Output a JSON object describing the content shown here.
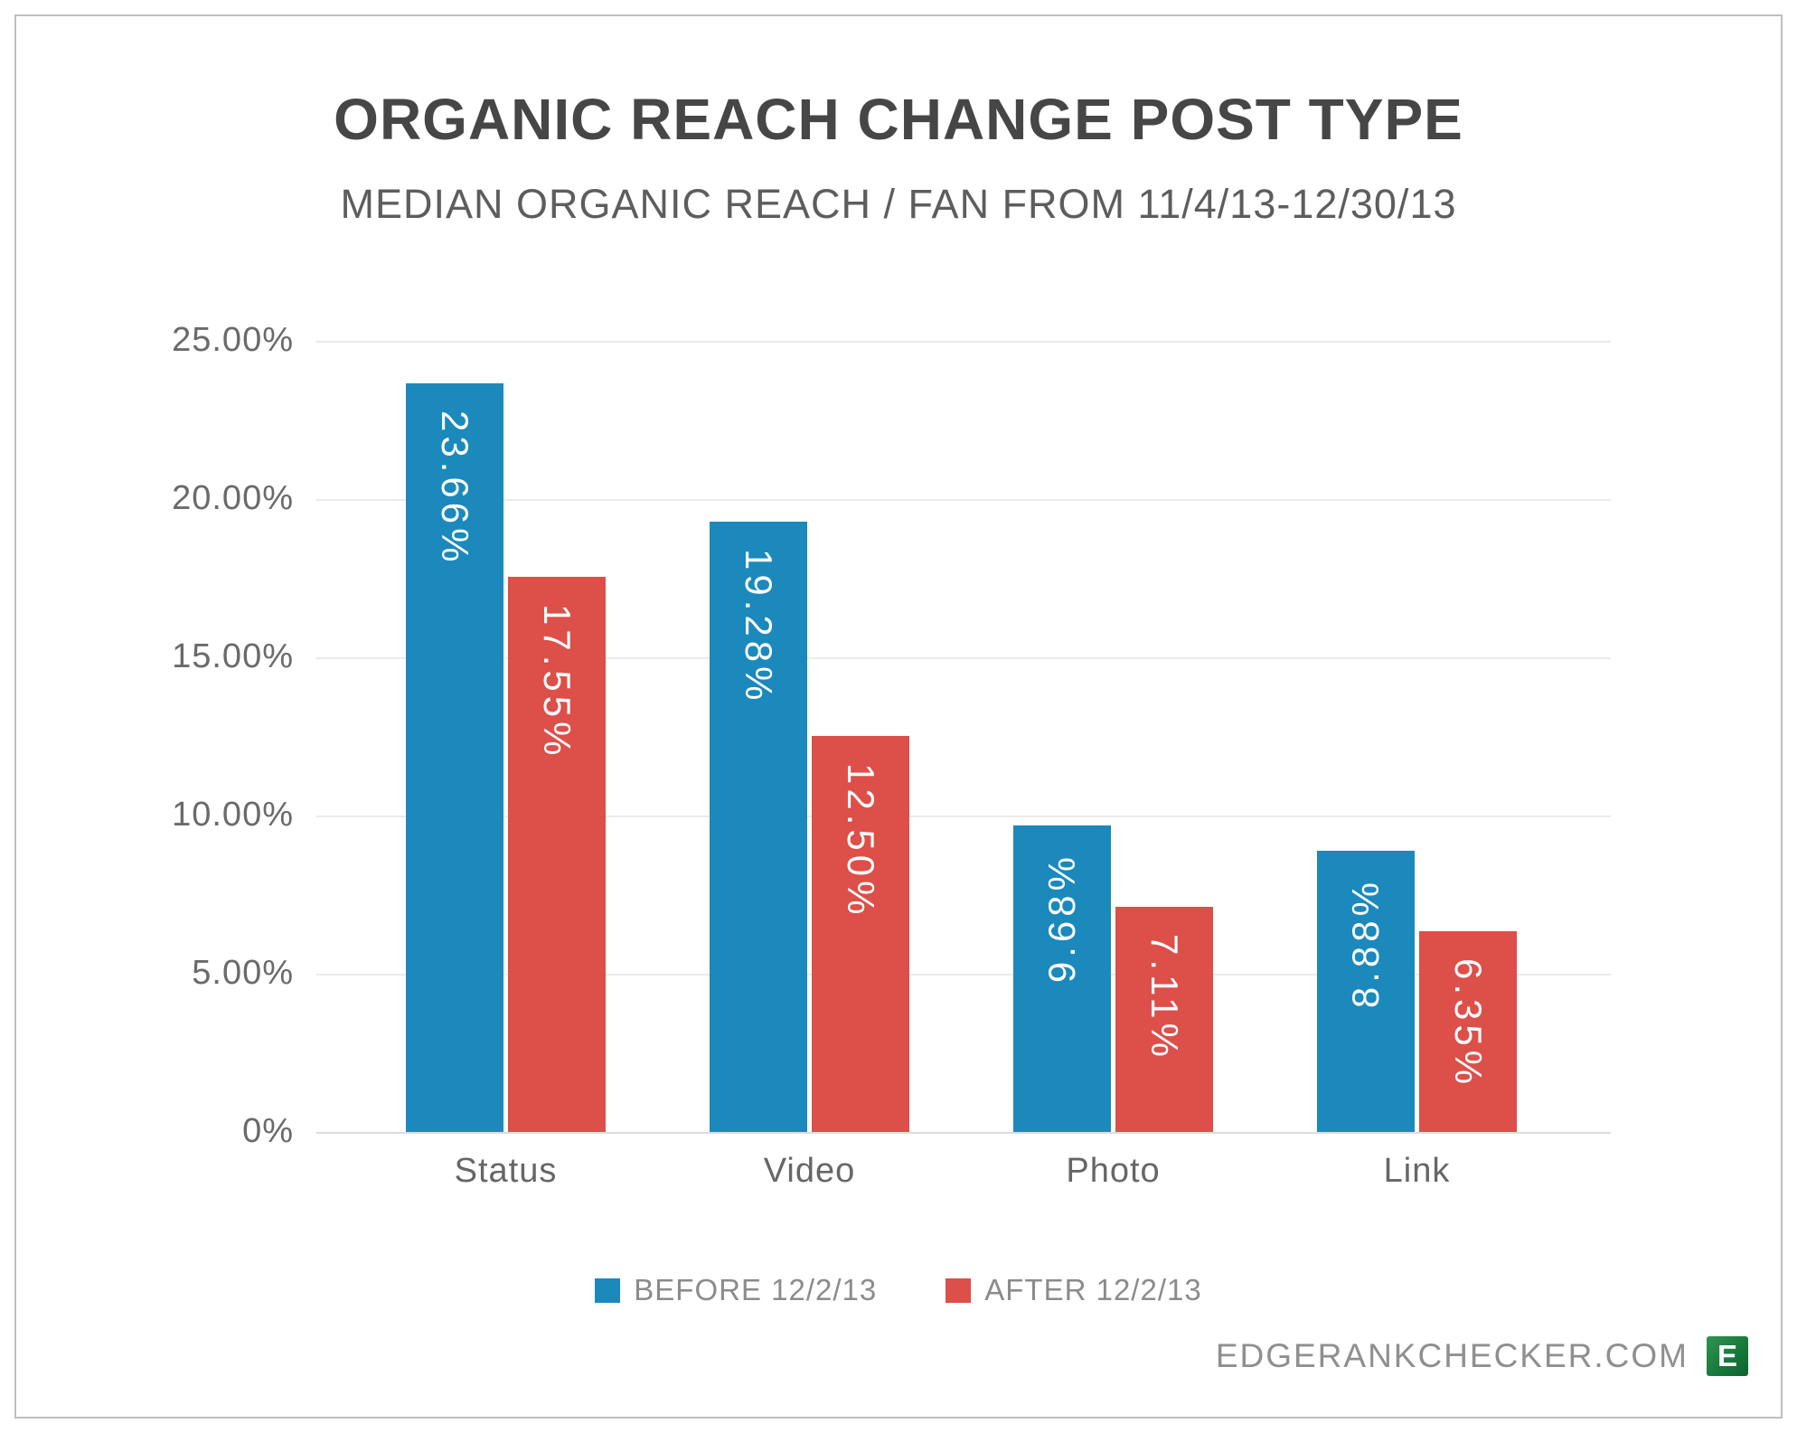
{
  "header": {
    "title": "ORGANIC REACH CHANGE POST TYPE",
    "subtitle": "MEDIAN ORGANIC REACH / FAN FROM 11/4/13-12/30/13"
  },
  "chart_data": {
    "type": "bar",
    "title": "ORGANIC REACH CHANGE POST TYPE",
    "subtitle": "MEDIAN ORGANIC REACH / FAN FROM 11/4/13-12/30/13",
    "categories": [
      "Status",
      "Video",
      "Photo",
      "Link"
    ],
    "series": [
      {
        "name": "BEFORE 12/2/13",
        "color": "#1b89bc",
        "values": [
          23.66,
          19.28,
          9.68,
          8.88
        ],
        "labels": [
          "23.66%",
          "19.28%",
          "9.68%",
          "8.88%"
        ],
        "label_flipped": [
          false,
          false,
          true,
          true
        ]
      },
      {
        "name": "AFTER 12/2/13",
        "color": "#dd4f49",
        "values": [
          17.55,
          12.5,
          7.11,
          6.35
        ],
        "labels": [
          "17.55%",
          "12.50%",
          "7.11%",
          "6.35%"
        ],
        "label_flipped": [
          false,
          false,
          false,
          false
        ]
      }
    ],
    "y_axis": {
      "min": 0,
      "max": 25,
      "ticks": [
        "25.00%",
        "20.00%",
        "15.00%",
        "10.00%",
        "5.00%",
        "0%"
      ]
    },
    "grid": true,
    "legend_position": "bottom",
    "value_label_color": "#ffffff"
  },
  "legend": {
    "items": [
      {
        "label": "BEFORE 12/2/13",
        "color": "#1b89bc"
      },
      {
        "label": "AFTER 12/2/13",
        "color": "#dd4f49"
      }
    ]
  },
  "footer": {
    "site": "EDGERANKCHECKER.COM",
    "logo_letter": "E",
    "logo_color": "#187a3c"
  }
}
